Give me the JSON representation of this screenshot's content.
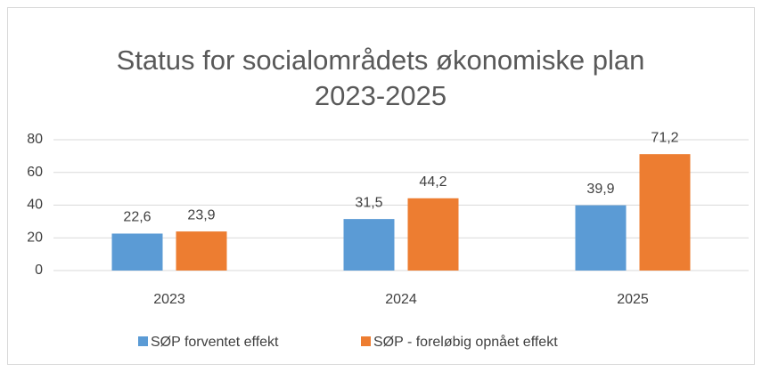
{
  "chart_data": {
    "type": "bar",
    "title": "Status for socialområdets økonomiske plan 2023-2025",
    "categories": [
      "2023",
      "2024",
      "2025"
    ],
    "series": [
      {
        "name": "SØP forventet effekt",
        "color": "#5b9bd5",
        "values": [
          22.6,
          31.5,
          39.9
        ],
        "value_labels": [
          "22,6",
          "31,5",
          "39,9"
        ]
      },
      {
        "name": "SØP - foreløbig opnået effekt",
        "color": "#ed7d31",
        "values": [
          23.9,
          44.2,
          71.2
        ],
        "value_labels": [
          "23,9",
          "44,2",
          "71,2"
        ]
      }
    ],
    "ylim": [
      0,
      80
    ],
    "yticks": [
      0,
      20,
      40,
      60,
      80
    ],
    "grid": true,
    "legend": "bottom"
  }
}
